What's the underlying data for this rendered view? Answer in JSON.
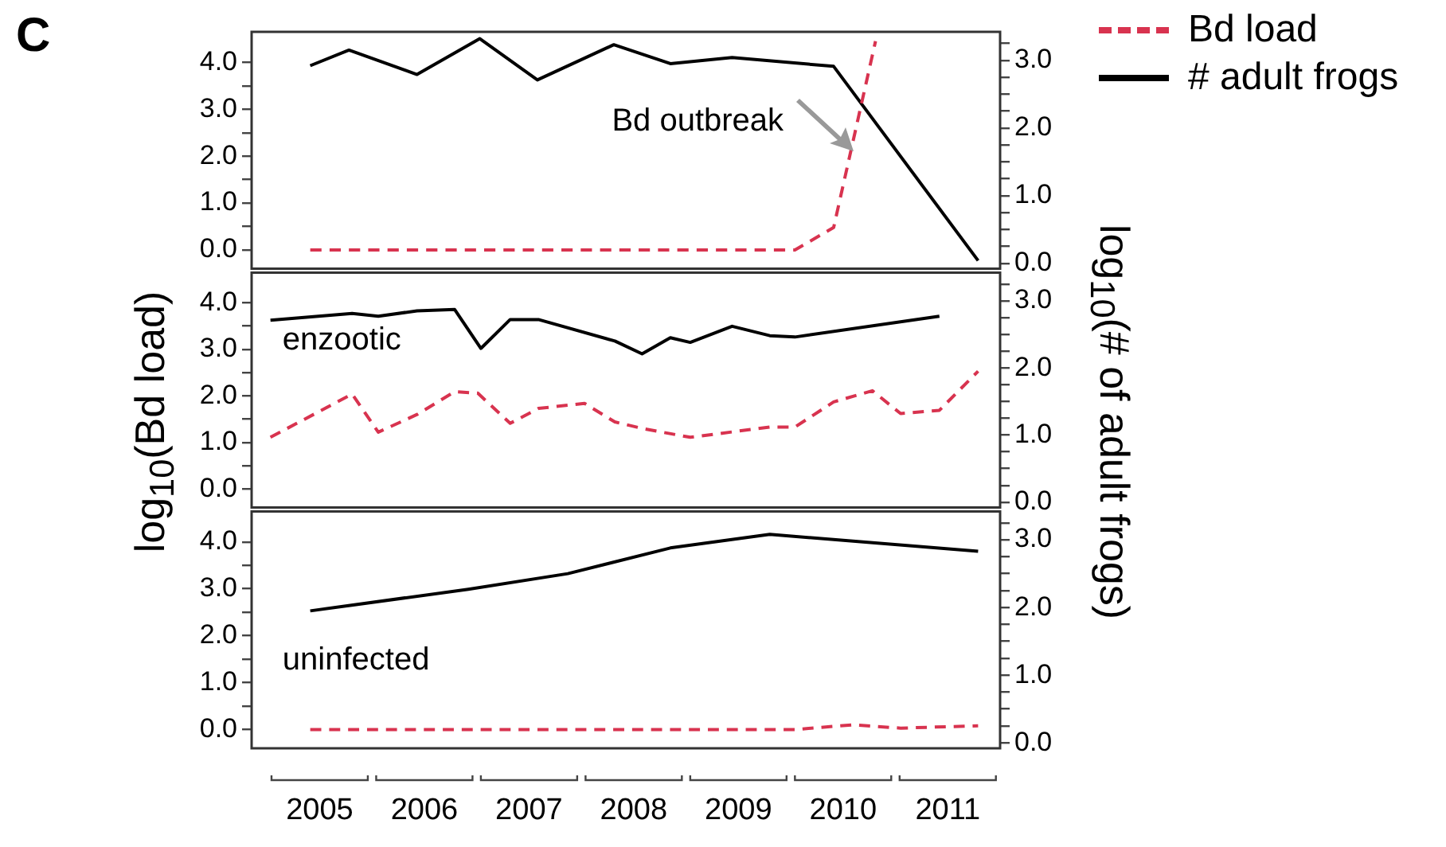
{
  "chart_data": [
    {
      "type": "line",
      "title": "C",
      "legend": "right",
      "tick_labels": "y",
      "xlim": [
        2004.85,
        2012.0
      ],
      "ylim": [
        -0.4,
        4.65
      ],
      "y2lim": [
        -0.08,
        3.42
      ],
      "yticks": [
        {
          "value": 0,
          "label": "0.0"
        },
        {
          "value": 0.5,
          "label": null
        },
        {
          "value": 1,
          "label": "1.0"
        },
        {
          "value": 1.5,
          "label": null
        },
        {
          "value": 2,
          "label": "2.0"
        },
        {
          "value": 2.5,
          "label": null
        },
        {
          "value": 3,
          "label": "3.0"
        },
        {
          "value": 3.5,
          "label": null
        },
        {
          "value": 4,
          "label": "4.0"
        }
      ],
      "y2ticks": [
        {
          "value": 0,
          "label": "0.0"
        },
        {
          "value": 0.25,
          "label": null
        },
        {
          "value": 0.5,
          "label": null
        },
        {
          "value": 0.75,
          "label": null
        },
        {
          "value": 1,
          "label": "1.0"
        },
        {
          "value": 1.25,
          "label": null
        },
        {
          "value": 1.5,
          "label": null
        },
        {
          "value": 1.75,
          "label": null
        },
        {
          "value": 2,
          "label": "2.0"
        },
        {
          "value": 2.25,
          "label": null
        },
        {
          "value": 2.5,
          "label": null
        },
        {
          "value": 2.75,
          "label": null
        },
        {
          "value": 3,
          "label": "3.0"
        },
        {
          "value": 3.25,
          "label": null
        }
      ],
      "annotations": [
        "Bd outbreak"
      ],
      "series": [
        {
          "name": "Bd load",
          "color": "#d8334f",
          "line_style": "dashed",
          "x": [
            2005.41,
            2010.04,
            2010.41,
            2010.81
          ],
          "values": [
            0.0,
            0.0,
            0.48,
            4.45
          ]
        },
        {
          "name": "# adult frogs",
          "color": "#000000",
          "line_style": "solid",
          "axis": "y2",
          "x": [
            2005.41,
            2005.78,
            2006.43,
            2007.03,
            2007.58,
            2008.31,
            2008.85,
            2009.44,
            2010.41,
            2011.79
          ],
          "values": [
            2.92,
            3.15,
            2.79,
            3.32,
            2.71,
            3.23,
            2.95,
            3.04,
            2.91,
            0.04
          ]
        }
      ]
    },
    {
      "type": "line",
      "ylabel": "log$_{10}$(Bd load)",
      "y2label": "log$_{10}$(# of adult frogs)",
      "tick_labels": "y",
      "xlim": [
        2004.85,
        2012.0
      ],
      "ylim": [
        -0.4,
        4.65
      ],
      "y2lim": [
        -0.08,
        3.42
      ],
      "yticks": [
        {
          "value": 0,
          "label": "0.0"
        },
        {
          "value": 0.5,
          "label": null
        },
        {
          "value": 1,
          "label": "1.0"
        },
        {
          "value": 1.5,
          "label": null
        },
        {
          "value": 2,
          "label": "2.0"
        },
        {
          "value": 2.5,
          "label": null
        },
        {
          "value": 3,
          "label": "3.0"
        },
        {
          "value": 3.5,
          "label": null
        },
        {
          "value": 4,
          "label": "4.0"
        }
      ],
      "y2ticks": [
        {
          "value": 0,
          "label": "0.0"
        },
        {
          "value": 0.25,
          "label": null
        },
        {
          "value": 0.5,
          "label": null
        },
        {
          "value": 0.75,
          "label": null
        },
        {
          "value": 1,
          "label": "1.0"
        },
        {
          "value": 1.25,
          "label": null
        },
        {
          "value": 1.5,
          "label": null
        },
        {
          "value": 1.75,
          "label": null
        },
        {
          "value": 2,
          "label": "2.0"
        },
        {
          "value": 2.25,
          "label": null
        },
        {
          "value": 2.5,
          "label": null
        },
        {
          "value": 2.75,
          "label": null
        },
        {
          "value": 3,
          "label": "3.0"
        },
        {
          "value": 3.25,
          "label": null
        }
      ],
      "annotations": [
        "enzootic"
      ],
      "series": [
        {
          "color": "#d8334f",
          "line_style": "dashed",
          "x": [
            2005.03,
            2005.81,
            2006.06,
            2006.43,
            2006.79,
            2007.01,
            2007.32,
            2007.59,
            2008.03,
            2008.32,
            2008.58,
            2009.04,
            2009.8,
            2010.04,
            2010.41,
            2010.78,
            2011.05,
            2011.42,
            2011.79
          ],
          "values": [
            1.11,
            2.04,
            1.22,
            1.6,
            2.09,
            2.06,
            1.41,
            1.73,
            1.84,
            1.44,
            1.3,
            1.11,
            1.33,
            1.33,
            1.87,
            2.11,
            1.62,
            1.69,
            2.53
          ]
        },
        {
          "color": "#000000",
          "line_style": "solid",
          "axis": "y2",
          "x": [
            2005.03,
            2005.81,
            2006.06,
            2006.43,
            2006.79,
            2007.04,
            2007.32,
            2007.59,
            2008.32,
            2008.58,
            2008.85,
            2009.04,
            2009.44,
            2009.8,
            2010.04,
            2011.42
          ],
          "values": [
            2.71,
            2.81,
            2.77,
            2.85,
            2.87,
            2.29,
            2.72,
            2.72,
            2.4,
            2.21,
            2.45,
            2.38,
            2.62,
            2.48,
            2.46,
            2.77
          ]
        }
      ]
    },
    {
      "type": "line",
      "xlim": [
        2004.85,
        2012.0
      ],
      "ylim": [
        -0.4,
        4.65
      ],
      "y2lim": [
        -0.08,
        3.42
      ],
      "xticks": [
        {
          "value": 2005.5,
          "label": "2005"
        },
        {
          "value": 2006.5,
          "label": "2006"
        },
        {
          "value": 2007.5,
          "label": "2007"
        },
        {
          "value": 2008.5,
          "label": "2008"
        },
        {
          "value": 2009.5,
          "label": "2009"
        },
        {
          "value": 2010.5,
          "label": "2010"
        },
        {
          "value": 2011.5,
          "label": "2011"
        }
      ],
      "yticks": [
        {
          "value": 0,
          "label": "0.0"
        },
        {
          "value": 0.5,
          "label": null
        },
        {
          "value": 1,
          "label": "1.0"
        },
        {
          "value": 1.5,
          "label": null
        },
        {
          "value": 2,
          "label": "2.0"
        },
        {
          "value": 2.5,
          "label": null
        },
        {
          "value": 3,
          "label": "3.0"
        },
        {
          "value": 3.5,
          "label": null
        },
        {
          "value": 4,
          "label": "4.0"
        }
      ],
      "y2ticks": [
        {
          "value": 0,
          "label": "0.0"
        },
        {
          "value": 0.25,
          "label": null
        },
        {
          "value": 0.5,
          "label": null
        },
        {
          "value": 0.75,
          "label": null
        },
        {
          "value": 1,
          "label": "1.0"
        },
        {
          "value": 1.25,
          "label": null
        },
        {
          "value": 1.5,
          "label": null
        },
        {
          "value": 1.75,
          "label": null
        },
        {
          "value": 2,
          "label": "2.0"
        },
        {
          "value": 2.25,
          "label": null
        },
        {
          "value": 2.5,
          "label": null
        },
        {
          "value": 2.75,
          "label": null
        },
        {
          "value": 3,
          "label": "3.0"
        },
        {
          "value": 3.25,
          "label": null
        }
      ],
      "annotations": [
        "uninfected"
      ],
      "series": [
        {
          "color": "#d8334f",
          "line_style": "dashed",
          "x": [
            2005.41,
            2010.04,
            2010.59,
            2011.05,
            2011.79
          ],
          "values": [
            0.0,
            0.0,
            0.1,
            0.03,
            0.08
          ]
        },
        {
          "color": "#000000",
          "line_style": "solid",
          "axis": "y2",
          "x": [
            2005.41,
            2006.92,
            2007.87,
            2008.85,
            2009.8,
            2011.79
          ],
          "values": [
            1.95,
            2.27,
            2.5,
            2.88,
            3.08,
            2.83
          ]
        }
      ]
    }
  ]
}
